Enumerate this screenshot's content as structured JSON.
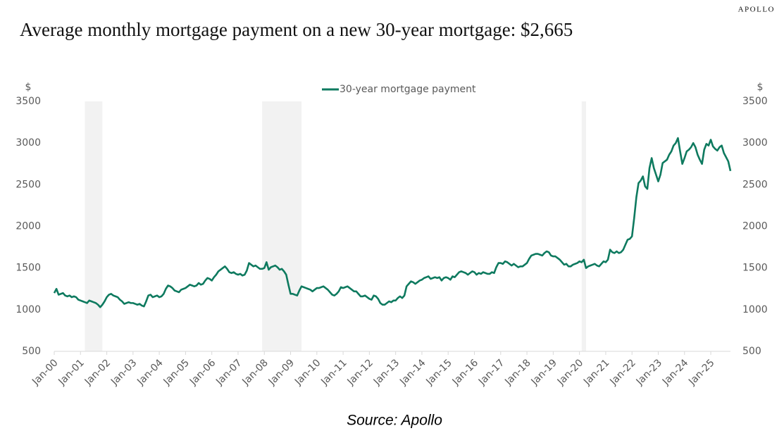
{
  "brand": "APOLLO",
  "chart_data": {
    "type": "line",
    "title": "Average monthly mortgage payment on a new 30-year mortgage: $2,665",
    "source": "Source: Apollo",
    "y_unit": "$",
    "y2_unit": "$",
    "legend": "top",
    "ylim": [
      500,
      3500
    ],
    "yticks": [
      500,
      1000,
      1500,
      2000,
      2500,
      3000,
      3500
    ],
    "y2lim": [
      500,
      3500
    ],
    "y2ticks": [
      500,
      1000,
      1500,
      2000,
      2500,
      3000,
      3500
    ],
    "xlim": [
      "2000-01",
      "2025-10"
    ],
    "xticks": [
      {
        "value": "2000-01",
        "label": "Jan-00"
      },
      {
        "value": "2001-01",
        "label": "Jan-01"
      },
      {
        "value": "2002-01",
        "label": "Jan-02"
      },
      {
        "value": "2003-01",
        "label": "Jan-03"
      },
      {
        "value": "2004-01",
        "label": "Jan-04"
      },
      {
        "value": "2005-01",
        "label": "Jan-05"
      },
      {
        "value": "2006-01",
        "label": "Jan-06"
      },
      {
        "value": "2007-01",
        "label": "Jan-07"
      },
      {
        "value": "2008-01",
        "label": "Jan-08"
      },
      {
        "value": "2009-01",
        "label": "Jan-09"
      },
      {
        "value": "2010-01",
        "label": "Jan-10"
      },
      {
        "value": "2011-01",
        "label": "Jan-11"
      },
      {
        "value": "2012-01",
        "label": "Jan-12"
      },
      {
        "value": "2013-01",
        "label": "Jan-13"
      },
      {
        "value": "2014-01",
        "label": "Jan-14"
      },
      {
        "value": "2015-01",
        "label": "Jan-15"
      },
      {
        "value": "2016-01",
        "label": "Jan-16"
      },
      {
        "value": "2017-01",
        "label": "Jan-17"
      },
      {
        "value": "2018-01",
        "label": "Jan-18"
      },
      {
        "value": "2019-01",
        "label": "Jan-19"
      },
      {
        "value": "2020-01",
        "label": "Jan-20"
      },
      {
        "value": "2021-01",
        "label": "Jan-21"
      },
      {
        "value": "2022-01",
        "label": "Jan-22"
      },
      {
        "value": "2023-01",
        "label": "Jan-23"
      },
      {
        "value": "2024-01",
        "label": "Jan-24"
      },
      {
        "value": "2025-01",
        "label": "Jan-25"
      }
    ],
    "shaded_periods": [
      {
        "start": "2001-03",
        "end": "2001-11"
      },
      {
        "start": "2007-12",
        "end": "2009-06"
      },
      {
        "start": "2020-02",
        "end": "2020-04"
      }
    ],
    "shade_color": "#f2f2f2",
    "x": [
      "2000-01",
      "2000-02",
      "2000-03",
      "2000-04",
      "2000-05",
      "2000-06",
      "2000-07",
      "2000-08",
      "2000-09",
      "2000-10",
      "2000-11",
      "2000-12",
      "2001-01",
      "2001-02",
      "2001-03",
      "2001-04",
      "2001-05",
      "2001-06",
      "2001-07",
      "2001-08",
      "2001-09",
      "2001-10",
      "2001-11",
      "2001-12",
      "2002-01",
      "2002-02",
      "2002-03",
      "2002-04",
      "2002-05",
      "2002-06",
      "2002-07",
      "2002-08",
      "2002-09",
      "2002-10",
      "2002-11",
      "2002-12",
      "2003-01",
      "2003-02",
      "2003-03",
      "2003-04",
      "2003-05",
      "2003-06",
      "2003-07",
      "2003-08",
      "2003-09",
      "2003-10",
      "2003-11",
      "2003-12",
      "2004-01",
      "2004-02",
      "2004-03",
      "2004-04",
      "2004-05",
      "2004-06",
      "2004-07",
      "2004-08",
      "2004-09",
      "2004-10",
      "2004-11",
      "2004-12",
      "2005-01",
      "2005-02",
      "2005-03",
      "2005-04",
      "2005-05",
      "2005-06",
      "2005-07",
      "2005-08",
      "2005-09",
      "2005-10",
      "2005-11",
      "2005-12",
      "2006-01",
      "2006-02",
      "2006-03",
      "2006-04",
      "2006-05",
      "2006-06",
      "2006-07",
      "2006-08",
      "2006-09",
      "2006-10",
      "2006-11",
      "2006-12",
      "2007-01",
      "2007-02",
      "2007-03",
      "2007-04",
      "2007-05",
      "2007-06",
      "2007-07",
      "2007-08",
      "2007-09",
      "2007-10",
      "2007-11",
      "2007-12",
      "2008-01",
      "2008-02",
      "2008-03",
      "2008-04",
      "2008-05",
      "2008-06",
      "2008-07",
      "2008-08",
      "2008-09",
      "2008-10",
      "2008-11",
      "2008-12",
      "2009-01",
      "2009-02",
      "2009-03",
      "2009-04",
      "2009-05",
      "2009-06",
      "2009-07",
      "2009-08",
      "2009-09",
      "2009-10",
      "2009-11",
      "2009-12",
      "2010-01",
      "2010-02",
      "2010-03",
      "2010-04",
      "2010-05",
      "2010-06",
      "2010-07",
      "2010-08",
      "2010-09",
      "2010-10",
      "2010-11",
      "2010-12",
      "2011-01",
      "2011-02",
      "2011-03",
      "2011-04",
      "2011-05",
      "2011-06",
      "2011-07",
      "2011-08",
      "2011-09",
      "2011-10",
      "2011-11",
      "2011-12",
      "2012-01",
      "2012-02",
      "2012-03",
      "2012-04",
      "2012-05",
      "2012-06",
      "2012-07",
      "2012-08",
      "2012-09",
      "2012-10",
      "2012-11",
      "2012-12",
      "2013-01",
      "2013-02",
      "2013-03",
      "2013-04",
      "2013-05",
      "2013-06",
      "2013-07",
      "2013-08",
      "2013-09",
      "2013-10",
      "2013-11",
      "2013-12",
      "2014-01",
      "2014-02",
      "2014-03",
      "2014-04",
      "2014-05",
      "2014-06",
      "2014-07",
      "2014-08",
      "2014-09",
      "2014-10",
      "2014-11",
      "2014-12",
      "2015-01",
      "2015-02",
      "2015-03",
      "2015-04",
      "2015-05",
      "2015-06",
      "2015-07",
      "2015-08",
      "2015-09",
      "2015-10",
      "2015-11",
      "2015-12",
      "2016-01",
      "2016-02",
      "2016-03",
      "2016-04",
      "2016-05",
      "2016-06",
      "2016-07",
      "2016-08",
      "2016-09",
      "2016-10",
      "2016-11",
      "2016-12",
      "2017-01",
      "2017-02",
      "2017-03",
      "2017-04",
      "2017-05",
      "2017-06",
      "2017-07",
      "2017-08",
      "2017-09",
      "2017-10",
      "2017-11",
      "2017-12",
      "2018-01",
      "2018-02",
      "2018-03",
      "2018-04",
      "2018-05",
      "2018-06",
      "2018-07",
      "2018-08",
      "2018-09",
      "2018-10",
      "2018-11",
      "2018-12",
      "2019-01",
      "2019-02",
      "2019-03",
      "2019-04",
      "2019-05",
      "2019-06",
      "2019-07",
      "2019-08",
      "2019-09",
      "2019-10",
      "2019-11",
      "2019-12",
      "2020-01",
      "2020-02",
      "2020-03",
      "2020-04",
      "2020-05",
      "2020-06",
      "2020-07",
      "2020-08",
      "2020-09",
      "2020-10",
      "2020-11",
      "2020-12",
      "2021-01",
      "2021-02",
      "2021-03",
      "2021-04",
      "2021-05",
      "2021-06",
      "2021-07",
      "2021-08",
      "2021-09",
      "2021-10",
      "2021-11",
      "2021-12",
      "2022-01",
      "2022-02",
      "2022-03",
      "2022-04",
      "2022-05",
      "2022-06",
      "2022-07",
      "2022-08",
      "2022-09",
      "2022-10",
      "2022-11",
      "2022-12",
      "2023-01",
      "2023-02",
      "2023-03",
      "2023-04",
      "2023-05",
      "2023-06",
      "2023-07",
      "2023-08",
      "2023-09",
      "2023-10",
      "2023-11",
      "2023-12",
      "2024-01",
      "2024-02",
      "2024-03",
      "2024-04",
      "2024-05",
      "2024-06",
      "2024-07",
      "2024-08",
      "2024-09",
      "2024-10",
      "2024-11",
      "2024-12",
      "2025-01",
      "2025-02",
      "2025-03",
      "2025-04",
      "2025-05",
      "2025-06",
      "2025-07",
      "2025-08",
      "2025-09",
      "2025-10"
    ],
    "series": [
      {
        "name": "30-year mortgage payment",
        "color": "#0e7a5f",
        "values": [
          1200,
          1250,
          1180,
          1190,
          1200,
          1170,
          1160,
          1170,
          1150,
          1160,
          1150,
          1120,
          1110,
          1100,
          1090,
          1080,
          1110,
          1100,
          1090,
          1080,
          1060,
          1030,
          1060,
          1100,
          1150,
          1180,
          1190,
          1170,
          1160,
          1150,
          1120,
          1100,
          1070,
          1080,
          1090,
          1080,
          1080,
          1070,
          1060,
          1070,
          1050,
          1040,
          1100,
          1170,
          1180,
          1150,
          1160,
          1170,
          1150,
          1160,
          1190,
          1250,
          1290,
          1280,
          1260,
          1230,
          1220,
          1210,
          1240,
          1250,
          1260,
          1280,
          1300,
          1290,
          1280,
          1290,
          1320,
          1300,
          1310,
          1350,
          1380,
          1370,
          1350,
          1390,
          1420,
          1460,
          1480,
          1500,
          1520,
          1490,
          1450,
          1440,
          1450,
          1430,
          1420,
          1430,
          1410,
          1420,
          1470,
          1560,
          1540,
          1520,
          1530,
          1510,
          1490,
          1490,
          1500,
          1570,
          1480,
          1510,
          1520,
          1530,
          1510,
          1480,
          1490,
          1460,
          1420,
          1300,
          1190,
          1190,
          1180,
          1170,
          1230,
          1280,
          1270,
          1260,
          1250,
          1240,
          1220,
          1240,
          1260,
          1260,
          1270,
          1280,
          1260,
          1240,
          1210,
          1180,
          1170,
          1190,
          1220,
          1270,
          1260,
          1270,
          1280,
          1260,
          1240,
          1220,
          1220,
          1190,
          1160,
          1160,
          1170,
          1150,
          1130,
          1120,
          1170,
          1160,
          1130,
          1080,
          1060,
          1060,
          1080,
          1100,
          1090,
          1110,
          1110,
          1140,
          1160,
          1140,
          1170,
          1280,
          1310,
          1340,
          1330,
          1310,
          1330,
          1350,
          1360,
          1380,
          1390,
          1400,
          1370,
          1380,
          1390,
          1380,
          1390,
          1350,
          1380,
          1390,
          1380,
          1360,
          1400,
          1390,
          1420,
          1450,
          1460,
          1450,
          1440,
          1420,
          1440,
          1460,
          1450,
          1420,
          1440,
          1430,
          1450,
          1440,
          1430,
          1430,
          1450,
          1440,
          1510,
          1560,
          1560,
          1550,
          1580,
          1570,
          1550,
          1530,
          1550,
          1530,
          1510,
          1520,
          1520,
          1540,
          1560,
          1610,
          1650,
          1660,
          1670,
          1670,
          1660,
          1650,
          1680,
          1700,
          1690,
          1650,
          1640,
          1640,
          1620,
          1600,
          1570,
          1540,
          1550,
          1520,
          1520,
          1540,
          1550,
          1560,
          1580,
          1570,
          1600,
          1500,
          1520,
          1530,
          1540,
          1550,
          1530,
          1520,
          1550,
          1580,
          1570,
          1600,
          1720,
          1690,
          1680,
          1700,
          1680,
          1690,
          1720,
          1780,
          1840,
          1850,
          1880,
          2100,
          2350,
          2520,
          2550,
          2600,
          2480,
          2450,
          2700,
          2820,
          2700,
          2620,
          2540,
          2620,
          2760,
          2780,
          2800,
          2860,
          2900,
          2970,
          3000,
          3060,
          2900,
          2750,
          2820,
          2900,
          2920,
          2950,
          3000,
          2950,
          2860,
          2800,
          2750,
          2920,
          2990,
          2970,
          3040,
          2960,
          2930,
          2910,
          2950,
          2970,
          2880,
          2830,
          2780,
          2665
        ]
      }
    ]
  }
}
